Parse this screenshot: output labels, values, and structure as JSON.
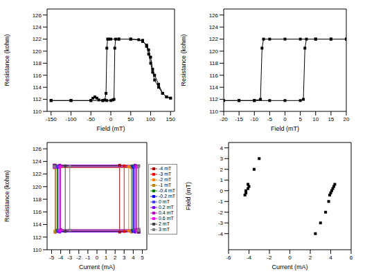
{
  "chart_data": [
    {
      "type": "line",
      "marker": "square",
      "color": "#000000",
      "xlabel": "Field (mT)",
      "ylabel": "Resistance (kohm)",
      "x": [
        150,
        140,
        130,
        120,
        110,
        105,
        100,
        95,
        90,
        80,
        70,
        50,
        20,
        0,
        -5,
        -8,
        -10,
        -12,
        -15,
        -20,
        -50,
        -100,
        -150,
        -150,
        -100,
        -50,
        -45,
        -40,
        -35,
        -30,
        -20,
        -10,
        0,
        5,
        8,
        10,
        12,
        20,
        50,
        80,
        90,
        95,
        100,
        105,
        110,
        120,
        130,
        140,
        150
      ],
      "values": [
        112.2,
        112.4,
        113,
        114.5,
        116,
        117,
        119,
        120.2,
        121,
        121.6,
        121.9,
        122,
        122,
        122,
        122,
        122,
        120.5,
        113,
        111.9,
        111.8,
        111.8,
        111.8,
        111.8,
        111.8,
        111.8,
        111.8,
        112.2,
        112.4,
        112.2,
        111.9,
        111.8,
        111.8,
        111.8,
        111.9,
        112,
        120.5,
        122,
        122,
        122,
        121.8,
        120.8,
        119.5,
        118,
        116.5,
        115.2,
        114,
        113,
        112.4,
        112.2
      ],
      "xlim": [
        -160,
        160
      ],
      "xticks": [
        -150,
        -100,
        -50,
        0,
        50,
        100,
        150
      ],
      "ylim": [
        110,
        127
      ],
      "yticks": [
        110,
        112,
        114,
        116,
        118,
        120,
        122,
        124,
        126
      ]
    },
    {
      "type": "line",
      "marker": "square",
      "color": "#000000",
      "xlabel": "Field (mT)",
      "ylabel": "Resistance (kohm)",
      "x": [
        20,
        15,
        10,
        5,
        0,
        -5,
        -7,
        -7.5,
        -8,
        -10,
        -15,
        -20,
        -15,
        -10,
        -5,
        0,
        5,
        6,
        6.5,
        7,
        10,
        15,
        20
      ],
      "values": [
        122,
        122,
        122,
        122,
        122,
        122,
        122,
        120.5,
        112,
        111.8,
        111.8,
        111.8,
        111.8,
        111.8,
        111.8,
        111.8,
        111.8,
        112,
        120.5,
        122,
        122,
        122,
        122
      ],
      "xlim": [
        -20,
        20
      ],
      "xticks": [
        -20,
        -15,
        -10,
        -5,
        0,
        5,
        10,
        15,
        20
      ],
      "ylim": [
        110,
        127
      ],
      "yticks": [
        110,
        112,
        114,
        116,
        118,
        120,
        122,
        124,
        126
      ]
    },
    {
      "type": "line",
      "marker": "square",
      "legend": "right",
      "xlabel": "Current (mA)",
      "ylabel": "Resistance (kohm)",
      "series": [
        {
          "name": "-4 mT",
          "color": "#b00000",
          "x": [
            4.6,
            -4.6,
            -4.6,
            -4.7,
            2.5,
            2.5,
            4.6
          ],
          "values": [
            112.8,
            112.8,
            123.4,
            123.4,
            123.4,
            112.8,
            112.8
          ]
        },
        {
          "name": "-3 mT",
          "color": "#ff0000",
          "x": [
            4.6,
            -4.6,
            -4.6,
            -4.7,
            3.0,
            3.0,
            4.6
          ],
          "values": [
            112.9,
            112.9,
            123.3,
            123.3,
            123.3,
            112.9,
            112.9
          ]
        },
        {
          "name": "-2 mT",
          "color": "#ff8000",
          "x": [
            4.6,
            -4.6,
            -4.6,
            -4.7,
            3.5,
            3.5,
            4.6
          ],
          "values": [
            113,
            113,
            123.2,
            123.2,
            123.2,
            113,
            113
          ]
        },
        {
          "name": "-1 mT",
          "color": "#c08000",
          "x": [
            4.6,
            -4.6,
            -4.6,
            -4.7,
            3.8,
            3.8,
            4.6
          ],
          "values": [
            112.8,
            112.8,
            123,
            123,
            123,
            112.8,
            112.8
          ]
        },
        {
          "name": "-0.4 mT",
          "color": "#008000",
          "x": [
            4.6,
            -4.4,
            -4.4,
            -4.7,
            3.9,
            3.9,
            4.6
          ],
          "values": [
            113.1,
            113.1,
            123.3,
            123.3,
            123.3,
            113.1,
            113.1
          ]
        },
        {
          "name": "-0.2 mT",
          "color": "#0000ff",
          "x": [
            4.6,
            -4.3,
            -4.3,
            -4.7,
            4.0,
            4.0,
            4.6
          ],
          "values": [
            112.9,
            112.9,
            123.1,
            123.1,
            123.1,
            112.9,
            112.9
          ]
        },
        {
          "name": "0 mT",
          "color": "#4040ff",
          "x": [
            4.6,
            -4.3,
            -4.3,
            -4.7,
            4.1,
            4.1,
            4.6
          ],
          "values": [
            113,
            113,
            123.2,
            123.2,
            123.2,
            113,
            113
          ]
        },
        {
          "name": "0.2 mT",
          "color": "#8000ff",
          "x": [
            4.6,
            -4.1,
            -4.1,
            -4.7,
            4.2,
            4.2,
            4.6
          ],
          "values": [
            112.8,
            112.8,
            123.4,
            123.4,
            123.4,
            112.8,
            112.8
          ]
        },
        {
          "name": "0.4 mT",
          "color": "#c000c0",
          "x": [
            4.6,
            -4.0,
            -4.0,
            -4.7,
            4.3,
            4.3,
            4.6
          ],
          "values": [
            113.2,
            113.2,
            123.3,
            123.3,
            123.3,
            113.2,
            113.2
          ]
        },
        {
          "name": "0.6 mT",
          "color": "#ff00ff",
          "x": [
            4.6,
            -4.1,
            -4.1,
            -4.7,
            4.4,
            4.4,
            4.6
          ],
          "values": [
            113,
            113,
            123.1,
            123.1,
            123.1,
            113,
            113
          ]
        },
        {
          "name": "2 mT",
          "color": "#404040",
          "x": [
            4.6,
            -3.5,
            -3.5,
            -4.7,
            4.6,
            4.6,
            4.6
          ],
          "values": [
            112.9,
            112.9,
            123.3,
            123.3,
            123.3,
            112.9,
            112.9
          ]
        },
        {
          "name": "3 mT",
          "color": "#808080",
          "x": [
            4.6,
            -3.0,
            -3.0,
            -4.7,
            4.6,
            4.6,
            4.6
          ],
          "values": [
            113.1,
            113.1,
            123.2,
            123.2,
            123.2,
            113.1,
            113.1
          ]
        }
      ],
      "xlim": [
        -5.5,
        5.5
      ],
      "xticks": [
        -5,
        -4,
        -3,
        -2,
        -1,
        0,
        1,
        2,
        3,
        4,
        5
      ],
      "ylim": [
        110,
        127
      ],
      "yticks": [
        110,
        112,
        114,
        116,
        118,
        120,
        122,
        124,
        126
      ]
    },
    {
      "type": "scatter",
      "marker": "square",
      "color": "#000000",
      "xlabel": "Current (mA)",
      "ylabel": "Field (mT)",
      "x": [
        -4.4,
        -4.3,
        -4.3,
        -4.1,
        -4.0,
        -4.1,
        -3.5,
        -3.0,
        2.5,
        3.0,
        3.5,
        3.8,
        3.9,
        4.0,
        4.1,
        4.2,
        4.3,
        4.4
      ],
      "values": [
        -0.4,
        -0.2,
        0,
        0.2,
        0.4,
        0.6,
        2,
        3,
        -4,
        -3,
        -2,
        -1,
        -0.4,
        -0.2,
        0,
        0.2,
        0.4,
        0.6
      ],
      "xlim": [
        -6,
        6
      ],
      "xticks": [
        -6,
        -4,
        -2,
        0,
        2,
        4,
        6
      ],
      "ylim": [
        -5.5,
        4.5
      ],
      "yticks": [
        -4,
        -3,
        -2,
        -1,
        0,
        1,
        2,
        3,
        4
      ]
    }
  ]
}
